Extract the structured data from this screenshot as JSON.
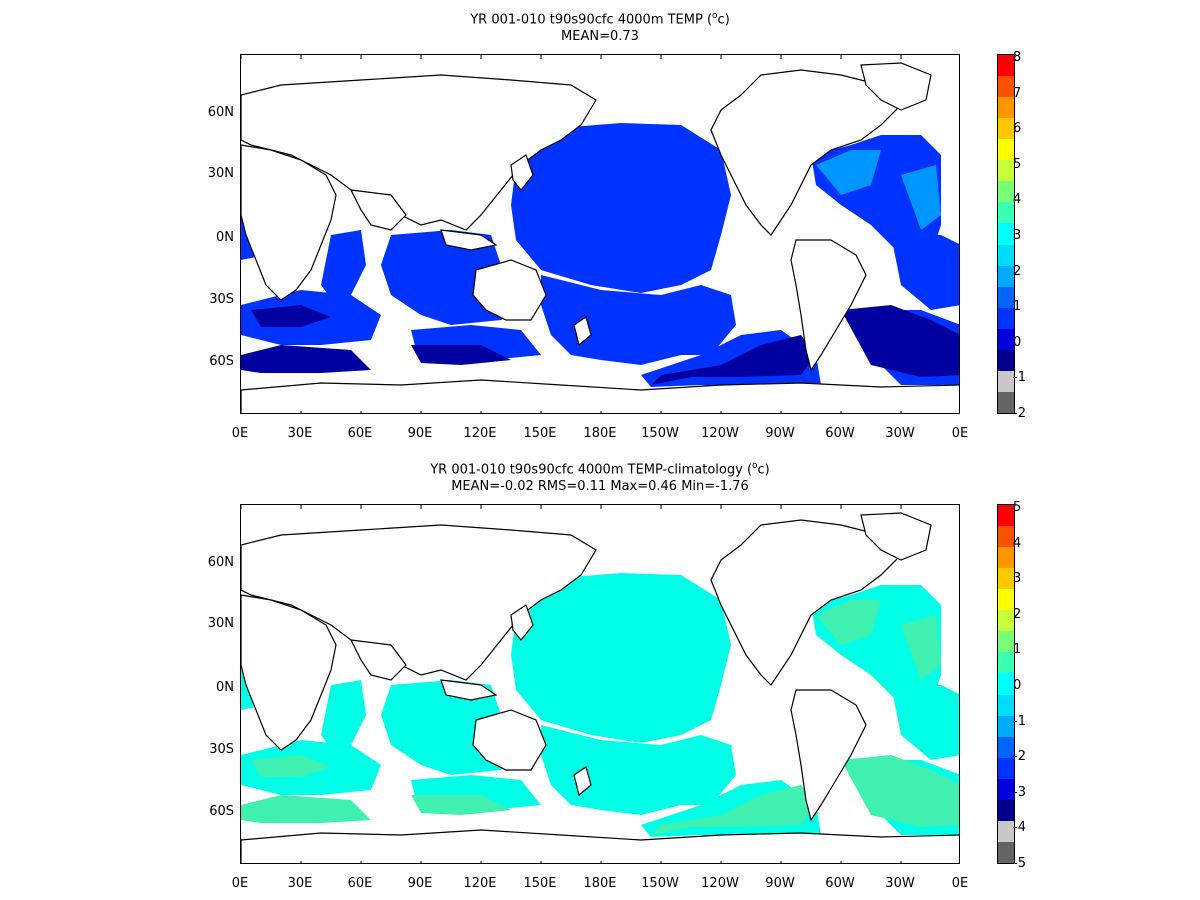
{
  "panels": [
    {
      "id": "top",
      "title_main": "YR 001-010 t90s90cfc 4000m TEMP (",
      "title_sup": "o",
      "title_end": "c)",
      "subtitle": "MEAN=0.73",
      "colorbar_labels": [
        "8",
        "7",
        "6",
        "5",
        "4",
        "3",
        "2",
        "1",
        "0",
        "-1",
        "-2"
      ],
      "colors": {
        "low": "#0000a0",
        "mid": "#0033ff",
        "high": "#0096ff"
      }
    },
    {
      "id": "bottom",
      "title_main": "YR 001-010 t90s90cfc 4000m TEMP-climatology (",
      "title_sup": "o",
      "title_end": "c)",
      "subtitle": "MEAN=-0.02   RMS=0.11   Max=0.46   Min=-1.76",
      "colorbar_labels": [
        "5",
        "4",
        "3",
        "2",
        "1",
        "0",
        "-1",
        "-2",
        "-3",
        "-4",
        "-5"
      ],
      "colors": {
        "low": "#00ffff",
        "mid": "#00ffe6",
        "high": "#40f0b0"
      }
    }
  ],
  "lat_labels": [
    "60N",
    "30N",
    "0N",
    "30S",
    "60S"
  ],
  "lon_labels": [
    "0E",
    "30E",
    "60E",
    "90E",
    "120E",
    "150E",
    "180E",
    "150W",
    "120W",
    "90W",
    "60W",
    "30W",
    "0E"
  ],
  "colorbar_colors": [
    "#ff0000",
    "#ff5000",
    "#ff9600",
    "#ffc800",
    "#ffff00",
    "#c8ff3c",
    "#78ff78",
    "#3cffb4",
    "#00ffff",
    "#00dcff",
    "#00aaff",
    "#0064ff",
    "#0032ff",
    "#0000dc",
    "#00008c",
    "#c8c8c8",
    "#646464"
  ]
}
